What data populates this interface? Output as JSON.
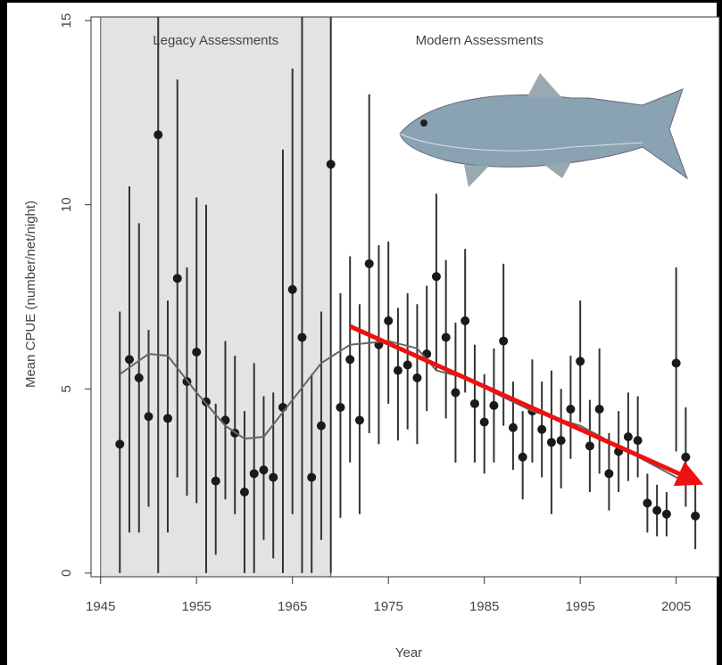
{
  "chart_data": {
    "type": "errorbar",
    "y_label": "Mean CPUE (number/net/night)",
    "x_label": "Year",
    "regions": [
      {
        "label": "Legacy Assessments",
        "x": [
          1945,
          1969
        ],
        "color": "#e3e3e3"
      },
      {
        "label": "Modern Assessments",
        "x": [
          1969,
          2009.5
        ],
        "color": "#ffffff"
      }
    ],
    "xlim": [
      1944,
      2009.5
    ],
    "ylim": [
      -0.1,
      15.1
    ],
    "xticks": [
      1945,
      1955,
      1965,
      1975,
      1985,
      1995,
      2005
    ],
    "yticks": [
      0,
      5,
      10,
      15
    ],
    "series": [
      {
        "color": "#1a1a1a",
        "x": [
          1947,
          1948,
          1949,
          1950,
          1951,
          1952,
          1953,
          1954,
          1955,
          1956,
          1957,
          1958,
          1959,
          1960,
          1961,
          1962,
          1963,
          1964,
          1965,
          1966,
          1967,
          1968,
          1969,
          1970,
          1971,
          1972,
          1973,
          1974,
          1975,
          1976,
          1977,
          1978,
          1979,
          1980,
          1981,
          1982,
          1983,
          1984,
          1985,
          1986,
          1987,
          1988,
          1989,
          1990,
          1991,
          1992,
          1993,
          1994,
          1995,
          1996,
          1997,
          1998,
          1999,
          2000,
          2001,
          2002,
          2003,
          2004,
          2005,
          2006,
          2007
        ],
        "values": [
          3.5,
          5.8,
          5.3,
          4.25,
          11.9,
          4.2,
          8.0,
          5.2,
          6.0,
          4.65,
          2.5,
          4.15,
          3.8,
          2.2,
          2.7,
          2.8,
          2.6,
          4.5,
          7.7,
          6.4,
          2.6,
          4.0,
          11.1,
          4.5,
          5.8,
          4.15,
          8.4,
          6.2,
          6.85,
          5.5,
          5.65,
          5.3,
          5.95,
          8.05,
          6.4,
          4.9,
          6.85,
          4.6,
          4.1,
          4.55,
          6.3,
          3.95,
          3.15,
          4.4,
          3.9,
          3.55,
          3.6,
          4.45,
          5.75,
          3.45,
          4.45,
          2.7,
          3.3,
          3.7,
          3.6,
          1.9,
          1.7,
          1.6,
          5.7,
          3.15,
          1.55
        ],
        "lower": [
          0,
          1.1,
          1.1,
          1.8,
          0,
          1.1,
          2.6,
          2.1,
          1.9,
          0,
          0.5,
          2.0,
          1.6,
          0,
          0,
          0.9,
          0.4,
          0,
          1.6,
          0,
          0,
          0.9,
          0,
          1.5,
          3.0,
          1.6,
          3.8,
          3.5,
          4.6,
          3.6,
          3.9,
          3.5,
          4.4,
          5.5,
          4.2,
          3.0,
          4.9,
          3.0,
          2.7,
          3.0,
          4.0,
          2.8,
          2.0,
          3.0,
          2.6,
          1.6,
          2.3,
          3.1,
          4.1,
          2.2,
          2.7,
          1.7,
          2.2,
          2.5,
          2.6,
          1.1,
          1.0,
          1.0,
          3.3,
          1.8,
          0.65
        ],
        "upper": [
          7.1,
          10.5,
          9.5,
          6.6,
          15.1,
          7.4,
          13.4,
          8.3,
          10.2,
          10.0,
          4.6,
          6.3,
          5.9,
          4.4,
          5.7,
          4.8,
          4.9,
          11.5,
          13.7,
          15.1,
          5.4,
          7.1,
          15.1,
          7.6,
          8.6,
          7.3,
          13.0,
          8.9,
          9.0,
          7.2,
          7.6,
          7.3,
          7.8,
          10.3,
          8.5,
          6.8,
          8.8,
          6.2,
          5.4,
          6.1,
          8.4,
          5.2,
          4.4,
          5.8,
          5.2,
          5.5,
          5.0,
          5.9,
          7.4,
          4.7,
          6.1,
          3.8,
          4.4,
          4.9,
          4.8,
          2.7,
          2.4,
          2.2,
          8.3,
          4.5,
          2.4
        ]
      },
      {
        "color": "#666666",
        "line": true,
        "x": [
          1947,
          1950,
          1952,
          1955,
          1958,
          1960,
          1962,
          1965,
          1968,
          1971,
          1975,
          1978,
          1980,
          1983,
          1986,
          1990,
          1995,
          2000,
          2005,
          2007
        ],
        "values": [
          5.4,
          5.95,
          5.9,
          4.9,
          4.0,
          3.65,
          3.7,
          4.7,
          5.7,
          6.2,
          6.3,
          6.1,
          5.5,
          5.3,
          4.9,
          4.4,
          4.0,
          3.3,
          2.6,
          2.5
        ]
      }
    ],
    "trend_arrow": {
      "x": [
        1971,
        2007
      ],
      "y": [
        6.7,
        2.5
      ],
      "color": "#ee1111"
    }
  }
}
